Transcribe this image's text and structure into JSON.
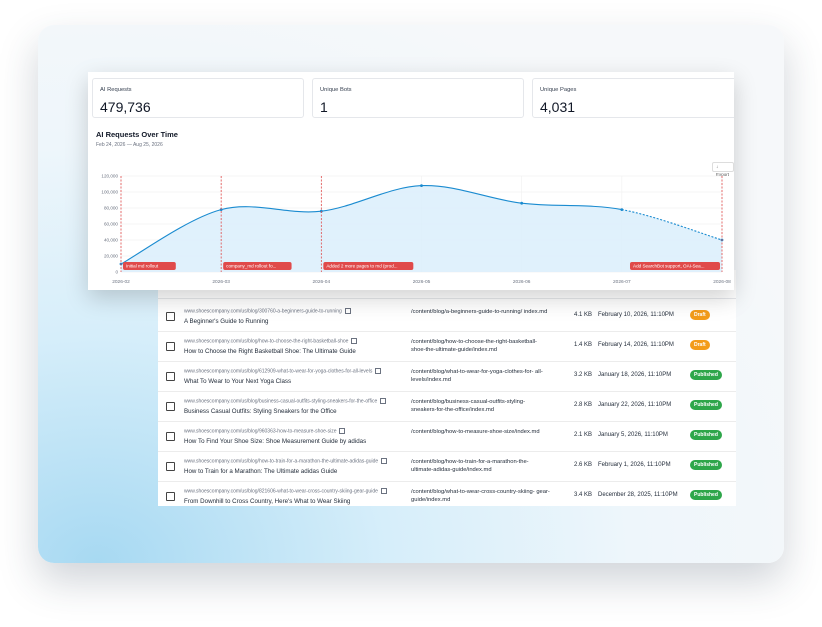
{
  "stats": [
    {
      "label": "AI Requests",
      "value": "479,736"
    },
    {
      "label": "Unique Bots",
      "value": "1"
    },
    {
      "label": "Unique Pages",
      "value": "4,031"
    }
  ],
  "chart": {
    "title": "AI Requests Over Time",
    "subtitle": "Feb 24, 2026 — Aug 25, 2026",
    "export_label": "Export"
  },
  "chart_data": {
    "type": "area",
    "x": [
      "2026-02",
      "2026-03",
      "2026-04",
      "2026-05",
      "2026-06",
      "2026-07",
      "2026-08"
    ],
    "values": [
      10000,
      78000,
      76000,
      108000,
      86000,
      78000,
      40000
    ],
    "projected_from": "2026-07",
    "ylim": [
      0,
      120000
    ],
    "yticks": [
      "0",
      "20,000",
      "40,000",
      "60,000",
      "80,000",
      "100,000",
      "120,000"
    ],
    "grid": true,
    "colors": {
      "line": "#1a8bd0",
      "fill": "#dbeefb",
      "annotation": "#e04a4a"
    },
    "annotations": [
      {
        "x": "2026-02",
        "label": "Initial md rollout"
      },
      {
        "x": "2026-03",
        "label": "company_md rollout fo..."
      },
      {
        "x": "2026-04",
        "label": "Added 2 more pages to md (prod..."
      },
      {
        "x": "2026-08",
        "label": "Add SearchBot support, OAI-Sea..."
      }
    ]
  },
  "table": {
    "rows": [
      {
        "url": "www.shoescompany.com/us/blog/300760-a-beginners-guide-to-running",
        "title": "A Beginner's Guide to Running",
        "path": "/content/blog/a-beginners-guide-to-running/ index.md",
        "size": "4.1 KB",
        "date": "February 10, 2026, 11:10PM",
        "status": "Draft"
      },
      {
        "url": "www.shoescompany.com/us/blog/how-to-choose-the-right-basketball-shoe",
        "title": "How to Choose the Right Basketball Shoe: The Ultimate Guide",
        "path": "/content/blog/how-to-choose-the-right-basketball- shoe-the-ultimate-guide/index.md",
        "size": "1.4 KB",
        "date": "February 14, 2026, 11:10PM",
        "status": "Draft"
      },
      {
        "url": "www.shoescompany.com/us/blog/612909-what-to-wear-for-yoga-clothes-for-all-levels",
        "title": "What To Wear to Your Next Yoga Class",
        "path": "/content/blog/what-to-wear-for-yoga-clothes-for- all-levels/index.md",
        "size": "3.2 KB",
        "date": "January 18, 2026, 11:10PM",
        "status": "Published"
      },
      {
        "url": "www.shoescompany.com/us/blog/business-casual-outfits-styling-sneakers-for-the-office",
        "title": "Business Casual Outfits: Styling Sneakers for the Office",
        "path": "/content/blog/business-casual-outfits-styling- sneakers-for-the-office/index.md",
        "size": "2.8 KB",
        "date": "January 22, 2026, 11:10PM",
        "status": "Published"
      },
      {
        "url": "www.shoescompany.com/us/blog/960363-how-to-measure-shoe-size",
        "title": "How To Find Your Shoe Size: Shoe Measurement Guide by adidas",
        "path": "/content/blog/how-to-measure-shoe-size/index.md",
        "size": "2.1 KB",
        "date": "January 5, 2026, 11:10PM",
        "status": "Published"
      },
      {
        "url": "www.shoescompany.com/us/blog/how-to-train-for-a-marathon-the-ultimate-adidas-guide",
        "title": "How to Train for a Marathon: The Ultimate adidas Guide",
        "path": "/content/blog/how-to-train-for-a-marathon-the- ultimate-adidas-guide/index.md",
        "size": "2.6 KB",
        "date": "February 1, 2026, 11:10PM",
        "status": "Published"
      },
      {
        "url": "www.shoescompany.com/us/blog/821606-what-to-wear-cross-country-skiing-gear-guide",
        "title": "From Downhill to Cross Country, Here's What to Wear Skiing",
        "path": "/content/blog/what-to-wear-cross-country-skiing- gear-guide/index.md",
        "size": "3.4 KB",
        "date": "December 28, 2025, 11:10PM",
        "status": "Published"
      }
    ]
  }
}
